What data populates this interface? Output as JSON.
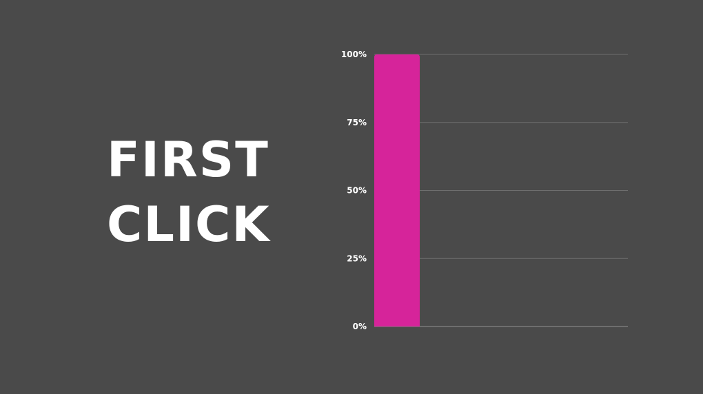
{
  "title_lines": [
    "FIRST",
    "CLICK"
  ],
  "chart_data": {
    "type": "bar",
    "categories": [
      ""
    ],
    "values": [
      100
    ],
    "ylim": [
      0,
      100
    ],
    "yticks": [
      0,
      25,
      50,
      75,
      100
    ],
    "ytick_labels": [
      "0%",
      "25%",
      "50%",
      "75%",
      "100%"
    ],
    "grid": true,
    "colors": {
      "bar": "#d6249a",
      "grid": "#6e6e6e",
      "background": "#4a4a4a",
      "text": "#ffffff"
    }
  }
}
